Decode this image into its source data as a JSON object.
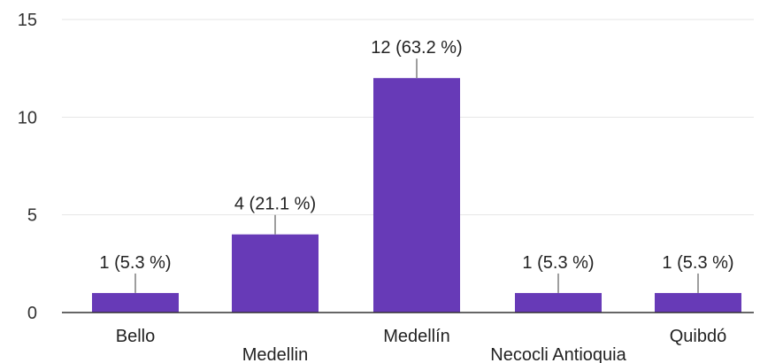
{
  "chart_data": {
    "type": "bar",
    "title": "",
    "xlabel": "",
    "ylabel": "",
    "categories": [
      "Bello",
      "Medellin",
      "Medellín",
      "Necocli Antioquia",
      "Quibdó"
    ],
    "values": [
      1,
      4,
      12,
      1,
      1
    ],
    "data_labels": [
      "1 (5.3 %)",
      "4 (21.1 %)",
      "12 (63.2 %)",
      "1 (5.3 %)",
      "1 (5.3 %)"
    ],
    "y_ticks": [
      "0",
      "5",
      "10",
      "15"
    ],
    "ylim": [
      0,
      15
    ],
    "grid": true,
    "legend": "none",
    "colors": {
      "bar": "#673ab7",
      "grid": "#e6e6e6",
      "axis": "#333333",
      "leader": "#9e9e9e"
    }
  }
}
